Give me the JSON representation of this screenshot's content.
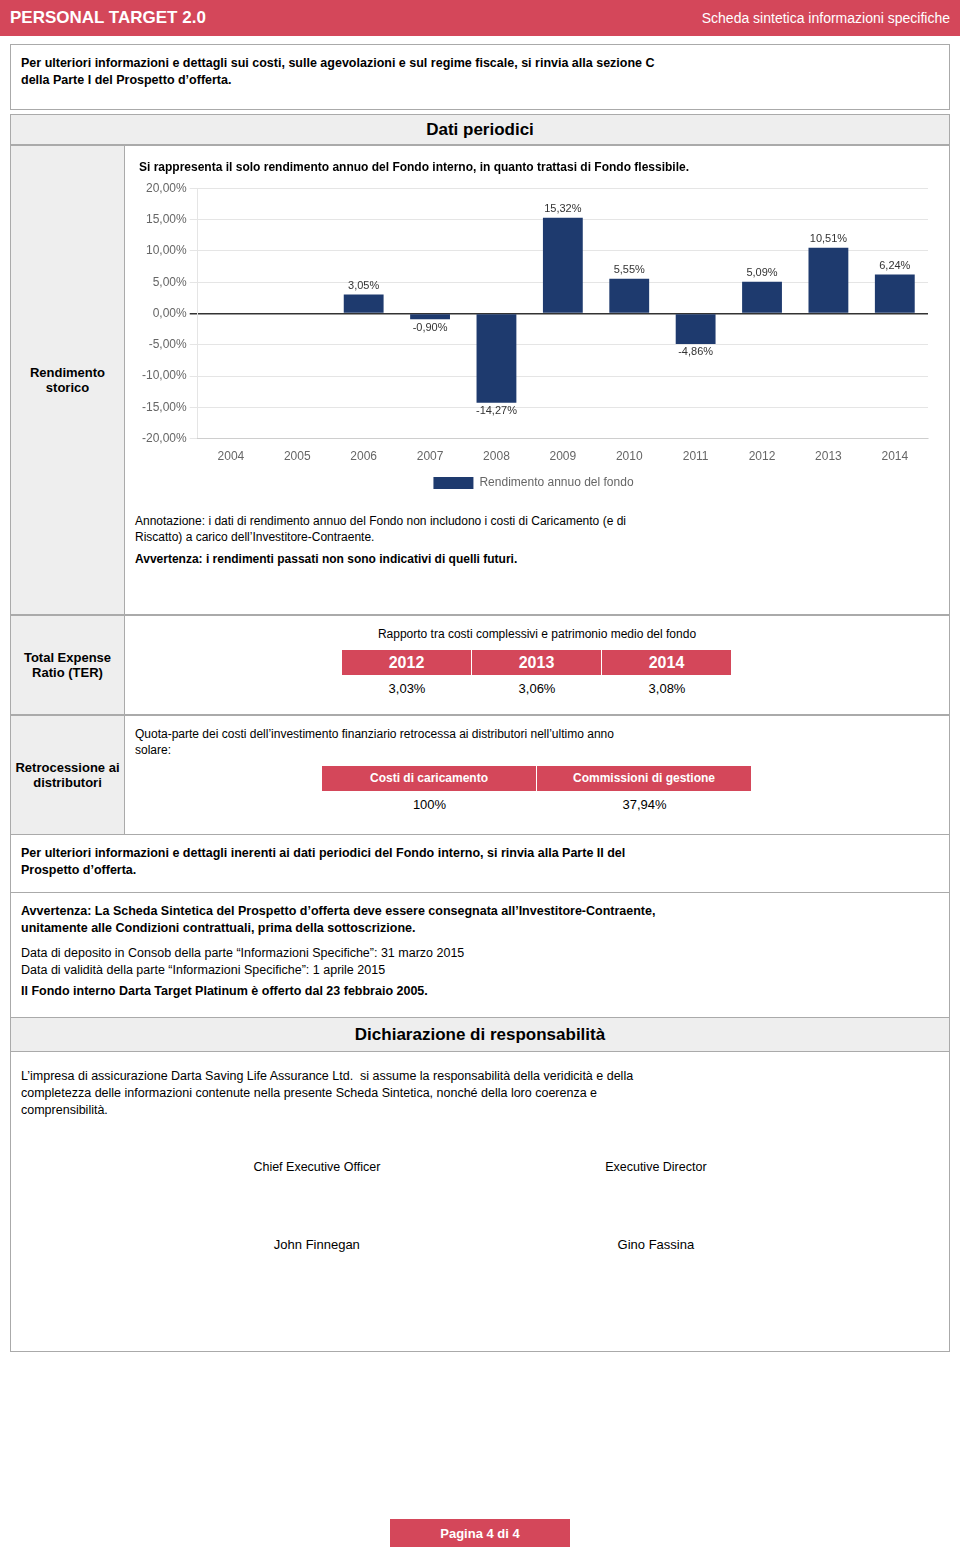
{
  "chart_data": {
    "type": "bar",
    "title": "Si rappresenta il solo rendimento annuo del Fondo interno, in quanto trattasi di Fondo flessibile.",
    "categories": [
      "2004",
      "2005",
      "2006",
      "2007",
      "2008",
      "2009",
      "2010",
      "2011",
      "2012",
      "2013",
      "2014"
    ],
    "series": [
      {
        "name": "Rendimento annuo del fondo",
        "color": "#1e3a6e",
        "values": [
          0.0,
          0.0,
          3.05,
          -0.9,
          -14.27,
          15.32,
          5.55,
          -4.86,
          5.09,
          10.51,
          6.24
        ],
        "value_labels": [
          null,
          null,
          "3,05%",
          "-0,90%",
          "-14,27%",
          "15,32%",
          "5,55%",
          "-4,86%",
          "5,09%",
          "10,51%",
          "6,24%"
        ]
      }
    ],
    "ylim": [
      -20,
      20
    ],
    "yticks": [
      {
        "value": -20,
        "label": "-20,00%"
      },
      {
        "value": -15,
        "label": "-15,00%"
      },
      {
        "value": -10,
        "label": "-10,00%"
      },
      {
        "value": -5,
        "label": "-5,00%"
      },
      {
        "value": 0,
        "label": "0,00%"
      },
      {
        "value": 5,
        "label": "5,00%"
      },
      {
        "value": 10,
        "label": "10,00%"
      },
      {
        "value": 15,
        "label": "15,00%"
      },
      {
        "value": 20,
        "label": "20,00%"
      }
    ],
    "grid": true,
    "legend": "bottom",
    "data_labels": true,
    "annotations": [
      "PERSONAL TARGET 2.0",
      "Scheda sintetica informazioni specifiche",
      "Per ulteriori informazioni e dettagli sui costi, sulle agevolazioni e sul regime fiscale, si rinvia alla sezione C",
      "della Parte I del Prospetto d’offerta.",
      "Dati periodici",
      "Rendimento\nstorico",
      "Annotazione: i dati di rendimento annuo del Fondo non includono i costi di Caricamento (e di",
      "Riscatto) a carico dell’Investitore-Contraente.",
      "Avvertenza: i rendimenti passati non sono indicativi di quelli futuri.",
      "Total Expense\nRatio (TER)",
      "Rapporto tra costi complessivi e patrimonio medio del fondo",
      "2012",
      "2013",
      "2014",
      "3,03%",
      "3,06%",
      "3,08%",
      "Retrocessione ai\ndistributori",
      "Quota-parte dei costi dell’investimento finanziario retrocessa ai distributori nell’ultimo anno",
      "solare:",
      "Costi di caricamento",
      "100%",
      "Commissioni di gestione",
      "37,94%",
      "Per ulteriori informazioni e dettagli inerenti ai dati periodici del Fondo interno, si rinvia alla Parte II del",
      "Prospetto d’offerta.",
      "Avvertenza: La Scheda Sintetica del Prospetto d’offerta deve essere consegnata all’Investitore-Contraente,",
      "unitamente alle Condizioni contrattuali, prima della sottoscrizione.",
      "Data di deposito in Consob della parte “Informazioni Specifiche”: 31 marzo 2015",
      "Data di validità della parte “Informazioni Specifiche”: 1 aprile 2015",
      "Il Fondo interno Darta Target Platinum è offerto dal 23 febbraio 2005.",
      "Dichiarazione di responsabilità",
      "L’impresa di assicurazione Darta Saving Life Assurance Ltd.  si assume la responsabilità della veridicità e della",
      "completezza delle informazioni contenute nella presente Scheda Sintetica, nonché della loro coerenza e",
      "comprensibilità.",
      "Chief Executive Officer",
      "John Finnegan",
      "Executive Director",
      "Gino Fassina",
      "Pagina 4 di 4"
    ]
  }
}
